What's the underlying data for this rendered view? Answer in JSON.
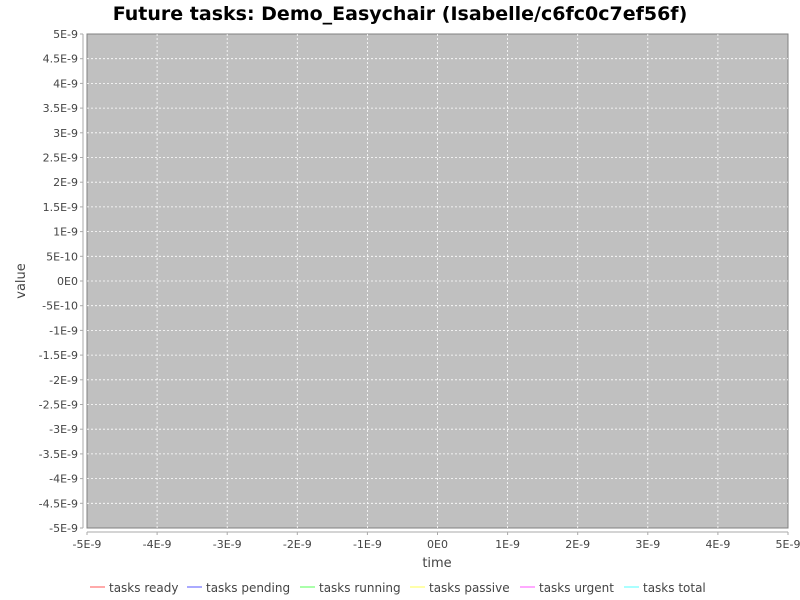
{
  "chart_data": {
    "type": "line",
    "title": "Future tasks: Demo_Easychair (Isabelle/c6fc0c7ef56f)",
    "xlabel": "time",
    "ylabel": "value",
    "xlim": [
      -5e-09,
      5e-09
    ],
    "ylim": [
      -5e-09,
      5e-09
    ],
    "x_ticks": [
      "-5E-9",
      "-4E-9",
      "-3E-9",
      "-2E-9",
      "-1E-9",
      "0E0",
      "1E-9",
      "2E-9",
      "3E-9",
      "4E-9",
      "5E-9"
    ],
    "y_ticks": [
      "5E-9",
      "4.5E-9",
      "4E-9",
      "3.5E-9",
      "3E-9",
      "2.5E-9",
      "2E-9",
      "1.5E-9",
      "1E-9",
      "5E-10",
      "0E0",
      "-5E-10",
      "-1E-9",
      "-1.5E-9",
      "-2E-9",
      "-2.5E-9",
      "-3E-9",
      "-3.5E-9",
      "-4E-9",
      "-4.5E-9",
      "-5E-9"
    ],
    "grid": true,
    "legend_position": "bottom",
    "plot_background": "#c0c0c0",
    "series": [
      {
        "name": "tasks ready",
        "color": "#ff5555",
        "values": []
      },
      {
        "name": "tasks pending",
        "color": "#5555ff",
        "values": []
      },
      {
        "name": "tasks running",
        "color": "#55ff55",
        "values": []
      },
      {
        "name": "tasks passive",
        "color": "#ffff55",
        "values": []
      },
      {
        "name": "tasks urgent",
        "color": "#ff55ff",
        "values": []
      },
      {
        "name": "tasks total",
        "color": "#55ffff",
        "values": []
      }
    ]
  }
}
